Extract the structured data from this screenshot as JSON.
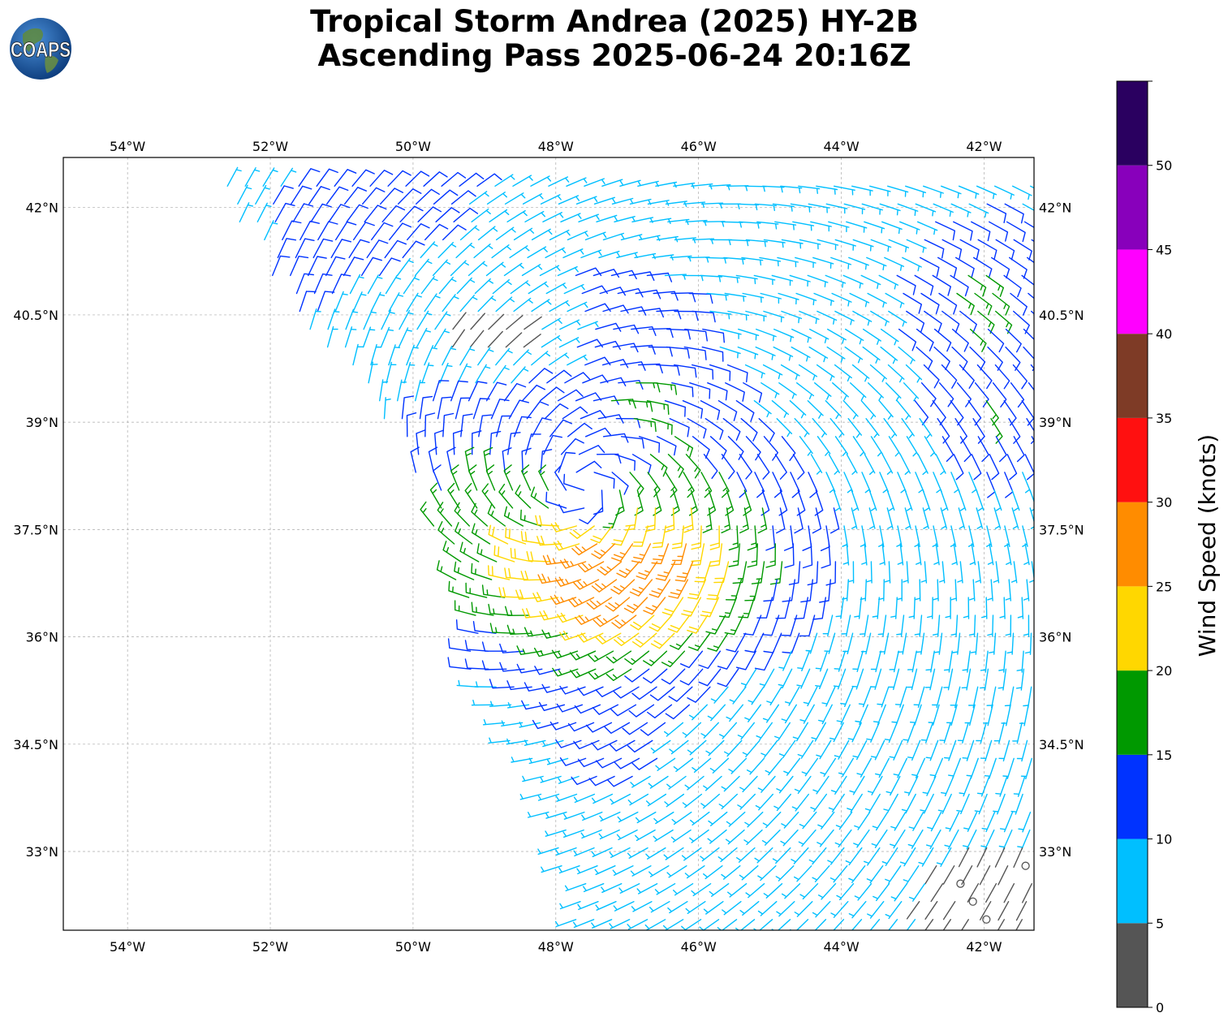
{
  "header": {
    "title_line1": "Tropical Storm Andrea (2025) HY-2B",
    "title_line2": "Ascending Pass 2025-06-24 20:16Z"
  },
  "logo": {
    "text": "COAPS"
  },
  "map": {
    "lon_range": [
      -54.9,
      -41.3
    ],
    "lat_range": [
      31.9,
      42.7
    ],
    "lon_ticks": [
      {
        "value": -54,
        "label": "54°W"
      },
      {
        "value": -52,
        "label": "52°W"
      },
      {
        "value": -50,
        "label": "50°W"
      },
      {
        "value": -48,
        "label": "48°W"
      },
      {
        "value": -46,
        "label": "46°W"
      },
      {
        "value": -44,
        "label": "44°W"
      },
      {
        "value": -42,
        "label": "42°W"
      }
    ],
    "lat_ticks": [
      {
        "value": 42,
        "label": "42°N"
      },
      {
        "value": 40.5,
        "label": "40.5°N"
      },
      {
        "value": 39,
        "label": "39°N"
      },
      {
        "value": 37.5,
        "label": "37.5°N"
      },
      {
        "value": 36,
        "label": "36°N"
      },
      {
        "value": 34.5,
        "label": "34.5°N"
      },
      {
        "value": 33,
        "label": "33°N"
      }
    ],
    "gridlines": true,
    "storm_center": {
      "lon": -47.6,
      "lat": 38.1
    },
    "swath_west_edge": [
      {
        "lon": -52.8,
        "lat": 42.4
      },
      {
        "lon": -51.5,
        "lat": 40.3
      },
      {
        "lon": -50.2,
        "lat": 38.8
      },
      {
        "lon": -49.5,
        "lat": 37.2
      },
      {
        "lon": -49.2,
        "lat": 35.3
      },
      {
        "lon": -48.3,
        "lat": 34.0
      },
      {
        "lon": -48.0,
        "lat": 33.0
      },
      {
        "lon": -47.6,
        "lat": 31.9
      }
    ]
  },
  "colorbar": {
    "label": "Wind Speed (knots)",
    "range": [
      0,
      55
    ],
    "tick_values": [
      0,
      5,
      10,
      15,
      20,
      25,
      30,
      35,
      40,
      45,
      50
    ],
    "bands": [
      {
        "from": 0,
        "to": 5,
        "color": "#555555"
      },
      {
        "from": 5,
        "to": 10,
        "color": "#00bfff"
      },
      {
        "from": 10,
        "to": 15,
        "color": "#0033ff"
      },
      {
        "from": 15,
        "to": 20,
        "color": "#009900"
      },
      {
        "from": 20,
        "to": 25,
        "color": "#ffd700"
      },
      {
        "from": 25,
        "to": 30,
        "color": "#ff8c00"
      },
      {
        "from": 30,
        "to": 35,
        "color": "#ff1010"
      },
      {
        "from": 35,
        "to": 40,
        "color": "#7e3b26"
      },
      {
        "from": 40,
        "to": 45,
        "color": "#ff00ff"
      },
      {
        "from": 45,
        "to": 50,
        "color": "#8800bb"
      },
      {
        "from": 50,
        "to": 55,
        "color": "#2a0060"
      }
    ]
  }
}
